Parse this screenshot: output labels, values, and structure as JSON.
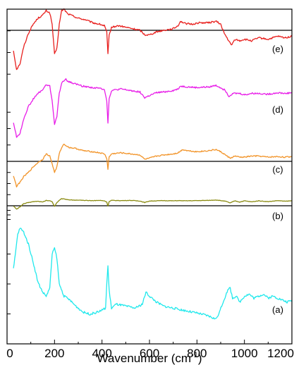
{
  "chart_data": {
    "type": "line",
    "title": "",
    "xlabel": "Wavenumber (cm",
    "xlabel_sup": "-1",
    "xlabel_close": ")",
    "ylabel": "",
    "xlim": [
      0,
      1200
    ],
    "xticks": [
      0,
      200,
      400,
      600,
      800,
      1000,
      1200
    ],
    "grid": false,
    "legend": "none",
    "y_units": "arbitrary offset units (each panel normalized 0-100)",
    "panels": [
      {
        "label": "(e)",
        "color": "#e8201e",
        "has_baseline": true,
        "baseline": 80,
        "ylim": [
          0,
          100
        ],
        "points": [
          [
            27,
            45
          ],
          [
            40,
            20
          ],
          [
            55,
            28
          ],
          [
            70,
            50
          ],
          [
            90,
            68
          ],
          [
            110,
            80
          ],
          [
            130,
            88
          ],
          [
            150,
            92
          ],
          [
            165,
            98
          ],
          [
            180,
            95
          ],
          [
            190,
            80
          ],
          [
            200,
            40
          ],
          [
            210,
            48
          ],
          [
            220,
            80
          ],
          [
            230,
            98
          ],
          [
            240,
            100
          ],
          [
            255,
            94
          ],
          [
            270,
            92
          ],
          [
            300,
            88
          ],
          [
            330,
            86
          ],
          [
            360,
            82
          ],
          [
            390,
            80
          ],
          [
            410,
            78
          ],
          [
            420,
            70
          ],
          [
            425,
            40
          ],
          [
            430,
            65
          ],
          [
            440,
            76
          ],
          [
            470,
            78
          ],
          [
            500,
            76
          ],
          [
            530,
            74
          ],
          [
            560,
            72
          ],
          [
            580,
            66
          ],
          [
            600,
            66
          ],
          [
            630,
            70
          ],
          [
            660,
            72
          ],
          [
            700,
            74
          ],
          [
            720,
            78
          ],
          [
            730,
            84
          ],
          [
            750,
            81
          ],
          [
            780,
            80
          ],
          [
            810,
            82
          ],
          [
            850,
            82
          ],
          [
            880,
            84
          ],
          [
            900,
            80
          ],
          [
            915,
            68
          ],
          [
            930,
            60
          ],
          [
            945,
            52
          ],
          [
            960,
            60
          ],
          [
            980,
            58
          ],
          [
            1000,
            60
          ],
          [
            1030,
            58
          ],
          [
            1060,
            62
          ],
          [
            1100,
            60
          ],
          [
            1140,
            64
          ],
          [
            1170,
            62
          ],
          [
            1200,
            64
          ]
        ]
      },
      {
        "label": "(d)",
        "color": "#e81ee8",
        "has_baseline": false,
        "baseline": null,
        "ylim": [
          0,
          100
        ],
        "points": [
          [
            27,
            40
          ],
          [
            40,
            20
          ],
          [
            55,
            25
          ],
          [
            70,
            45
          ],
          [
            90,
            62
          ],
          [
            110,
            72
          ],
          [
            130,
            80
          ],
          [
            150,
            85
          ],
          [
            165,
            92
          ],
          [
            180,
            90
          ],
          [
            190,
            70
          ],
          [
            200,
            38
          ],
          [
            210,
            48
          ],
          [
            220,
            80
          ],
          [
            230,
            94
          ],
          [
            245,
            100
          ],
          [
            260,
            96
          ],
          [
            290,
            93
          ],
          [
            320,
            90
          ],
          [
            360,
            88
          ],
          [
            390,
            87
          ],
          [
            410,
            86
          ],
          [
            420,
            70
          ],
          [
            425,
            40
          ],
          [
            430,
            72
          ],
          [
            440,
            84
          ],
          [
            480,
            86
          ],
          [
            520,
            84
          ],
          [
            560,
            82
          ],
          [
            580,
            74
          ],
          [
            600,
            77
          ],
          [
            630,
            81
          ],
          [
            660,
            82
          ],
          [
            700,
            84
          ],
          [
            720,
            86
          ],
          [
            730,
            90
          ],
          [
            760,
            89
          ],
          [
            800,
            88
          ],
          [
            850,
            89
          ],
          [
            880,
            91
          ],
          [
            900,
            88
          ],
          [
            920,
            84
          ],
          [
            935,
            76
          ],
          [
            950,
            80
          ],
          [
            980,
            80
          ],
          [
            1000,
            78
          ],
          [
            1030,
            80
          ],
          [
            1060,
            80
          ],
          [
            1100,
            79
          ],
          [
            1140,
            81
          ],
          [
            1170,
            80
          ],
          [
            1200,
            81
          ]
        ]
      },
      {
        "label": "(c)",
        "color": "#f29429",
        "has_baseline": true,
        "baseline": 100,
        "ylim": [
          0,
          100
        ],
        "points": [
          [
            27,
            40
          ],
          [
            40,
            20
          ],
          [
            55,
            28
          ],
          [
            70,
            38
          ],
          [
            90,
            46
          ],
          [
            110,
            56
          ],
          [
            130,
            64
          ],
          [
            150,
            70
          ],
          [
            165,
            80
          ],
          [
            180,
            76
          ],
          [
            190,
            62
          ],
          [
            200,
            46
          ],
          [
            210,
            56
          ],
          [
            220,
            80
          ],
          [
            230,
            92
          ],
          [
            240,
            98
          ],
          [
            260,
            92
          ],
          [
            290,
            90
          ],
          [
            320,
            86
          ],
          [
            360,
            84
          ],
          [
            390,
            82
          ],
          [
            410,
            80
          ],
          [
            420,
            72
          ],
          [
            425,
            52
          ],
          [
            430,
            74
          ],
          [
            440,
            80
          ],
          [
            480,
            82
          ],
          [
            520,
            80
          ],
          [
            560,
            78
          ],
          [
            580,
            70
          ],
          [
            600,
            72
          ],
          [
            630,
            76
          ],
          [
            660,
            78
          ],
          [
            700,
            80
          ],
          [
            720,
            82
          ],
          [
            740,
            88
          ],
          [
            760,
            86
          ],
          [
            800,
            84
          ],
          [
            850,
            86
          ],
          [
            880,
            88
          ],
          [
            900,
            84
          ],
          [
            920,
            78
          ],
          [
            940,
            72
          ],
          [
            960,
            76
          ],
          [
            980,
            74
          ],
          [
            1000,
            74
          ],
          [
            1030,
            76
          ],
          [
            1060,
            76
          ],
          [
            1100,
            74
          ],
          [
            1140,
            75
          ],
          [
            1170,
            74
          ],
          [
            1200,
            75
          ]
        ]
      },
      {
        "label": "(b)",
        "color": "#8a8a10",
        "has_baseline": true,
        "baseline": 100,
        "ylim": [
          0,
          100
        ],
        "points": [
          [
            27,
            66
          ],
          [
            40,
            50
          ],
          [
            55,
            62
          ],
          [
            70,
            76
          ],
          [
            90,
            82
          ],
          [
            110,
            86
          ],
          [
            130,
            88
          ],
          [
            150,
            84
          ],
          [
            165,
            92
          ],
          [
            180,
            90
          ],
          [
            190,
            86
          ],
          [
            200,
            64
          ],
          [
            210,
            82
          ],
          [
            220,
            92
          ],
          [
            230,
            100
          ],
          [
            245,
            98
          ],
          [
            260,
            95
          ],
          [
            290,
            93
          ],
          [
            320,
            92
          ],
          [
            360,
            91
          ],
          [
            390,
            92
          ],
          [
            410,
            90
          ],
          [
            420,
            84
          ],
          [
            425,
            66
          ],
          [
            430,
            86
          ],
          [
            440,
            92
          ],
          [
            480,
            91
          ],
          [
            520,
            92
          ],
          [
            560,
            89
          ],
          [
            580,
            82
          ],
          [
            600,
            89
          ],
          [
            630,
            90
          ],
          [
            660,
            91
          ],
          [
            700,
            90
          ],
          [
            720,
            91
          ],
          [
            750,
            90
          ],
          [
            800,
            91
          ],
          [
            850,
            92
          ],
          [
            880,
            94
          ],
          [
            900,
            91
          ],
          [
            920,
            88
          ],
          [
            940,
            80
          ],
          [
            960,
            90
          ],
          [
            980,
            84
          ],
          [
            1000,
            90
          ],
          [
            1030,
            85
          ],
          [
            1060,
            90
          ],
          [
            1100,
            86
          ],
          [
            1140,
            91
          ],
          [
            1170,
            88
          ],
          [
            1200,
            90
          ]
        ]
      },
      {
        "label": "(a)",
        "color": "#20e8ec",
        "has_baseline": false,
        "baseline": null,
        "ylim": [
          0,
          100
        ],
        "points": [
          [
            27,
            55
          ],
          [
            35,
            70
          ],
          [
            45,
            90
          ],
          [
            55,
            96
          ],
          [
            70,
            92
          ],
          [
            90,
            80
          ],
          [
            110,
            62
          ],
          [
            130,
            42
          ],
          [
            150,
            32
          ],
          [
            165,
            28
          ],
          [
            180,
            36
          ],
          [
            190,
            70
          ],
          [
            200,
            76
          ],
          [
            210,
            66
          ],
          [
            220,
            40
          ],
          [
            240,
            28
          ],
          [
            260,
            25
          ],
          [
            290,
            18
          ],
          [
            320,
            12
          ],
          [
            350,
            10
          ],
          [
            380,
            12
          ],
          [
            400,
            14
          ],
          [
            415,
            16
          ],
          [
            420,
            40
          ],
          [
            425,
            58
          ],
          [
            430,
            34
          ],
          [
            440,
            16
          ],
          [
            460,
            20
          ],
          [
            500,
            18
          ],
          [
            540,
            16
          ],
          [
            570,
            20
          ],
          [
            585,
            32
          ],
          [
            600,
            28
          ],
          [
            630,
            22
          ],
          [
            660,
            18
          ],
          [
            700,
            16
          ],
          [
            740,
            14
          ],
          [
            780,
            12
          ],
          [
            820,
            10
          ],
          [
            850,
            8
          ],
          [
            870,
            6
          ],
          [
            880,
            5
          ],
          [
            895,
            12
          ],
          [
            910,
            22
          ],
          [
            930,
            34
          ],
          [
            940,
            36
          ],
          [
            950,
            26
          ],
          [
            965,
            28
          ],
          [
            980,
            22
          ],
          [
            1000,
            28
          ],
          [
            1020,
            30
          ],
          [
            1040,
            26
          ],
          [
            1060,
            28
          ],
          [
            1080,
            30
          ],
          [
            1100,
            26
          ],
          [
            1120,
            28
          ],
          [
            1140,
            26
          ],
          [
            1160,
            24
          ],
          [
            1180,
            22
          ],
          [
            1200,
            24
          ]
        ]
      }
    ]
  }
}
